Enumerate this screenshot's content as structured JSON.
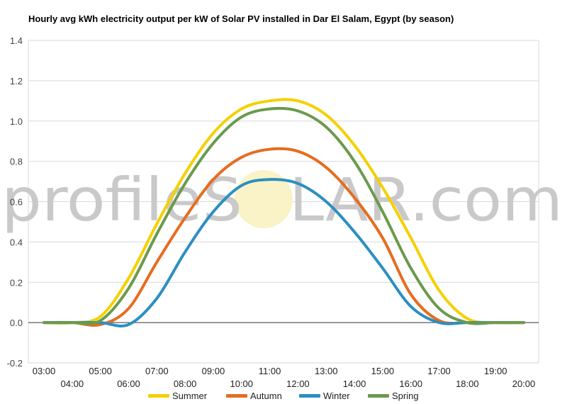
{
  "chart_data": {
    "type": "line",
    "title": "Hourly avg kWh electricity output per kW of Solar PV installed in Dar El Salam, Egypt (by season)",
    "xlabel": "",
    "ylabel": "",
    "ylim": [
      -0.2,
      1.4
    ],
    "yticks": [
      "-0.2",
      "0.0",
      "0.2",
      "0.4",
      "0.6",
      "0.8",
      "1.0",
      "1.2",
      "1.4"
    ],
    "grid": true,
    "legend_position": "bottom",
    "categories": [
      "03:00",
      "04:00",
      "05:00",
      "06:00",
      "07:00",
      "08:00",
      "09:00",
      "10:00",
      "11:00",
      "12:00",
      "13:00",
      "14:00",
      "15:00",
      "16:00",
      "17:00",
      "18:00",
      "19:00",
      "20:00"
    ],
    "series": [
      {
        "name": "Summer",
        "color": "#f5d000",
        "values": [
          0,
          0,
          0.03,
          0.22,
          0.49,
          0.74,
          0.94,
          1.06,
          1.1,
          1.1,
          1.03,
          0.88,
          0.67,
          0.42,
          0.16,
          0.02,
          0,
          0
        ]
      },
      {
        "name": "Autumn",
        "color": "#e56d1f",
        "values": [
          0,
          0,
          -0.01,
          0.07,
          0.3,
          0.52,
          0.71,
          0.82,
          0.86,
          0.85,
          0.77,
          0.62,
          0.42,
          0.14,
          0.01,
          0,
          0,
          0
        ]
      },
      {
        "name": "Winter",
        "color": "#2c8fc0",
        "values": [
          0,
          0,
          0,
          -0.01,
          0.12,
          0.35,
          0.55,
          0.68,
          0.71,
          0.69,
          0.6,
          0.45,
          0.27,
          0.08,
          0,
          0,
          0,
          0
        ]
      },
      {
        "name": "Spring",
        "color": "#6b9a4d",
        "values": [
          0,
          0,
          0.01,
          0.17,
          0.44,
          0.69,
          0.89,
          1.02,
          1.06,
          1.05,
          0.97,
          0.8,
          0.55,
          0.27,
          0.07,
          0,
          0,
          0
        ]
      }
    ]
  },
  "watermark": {
    "before": "profileS",
    "after": "LAR.com"
  }
}
